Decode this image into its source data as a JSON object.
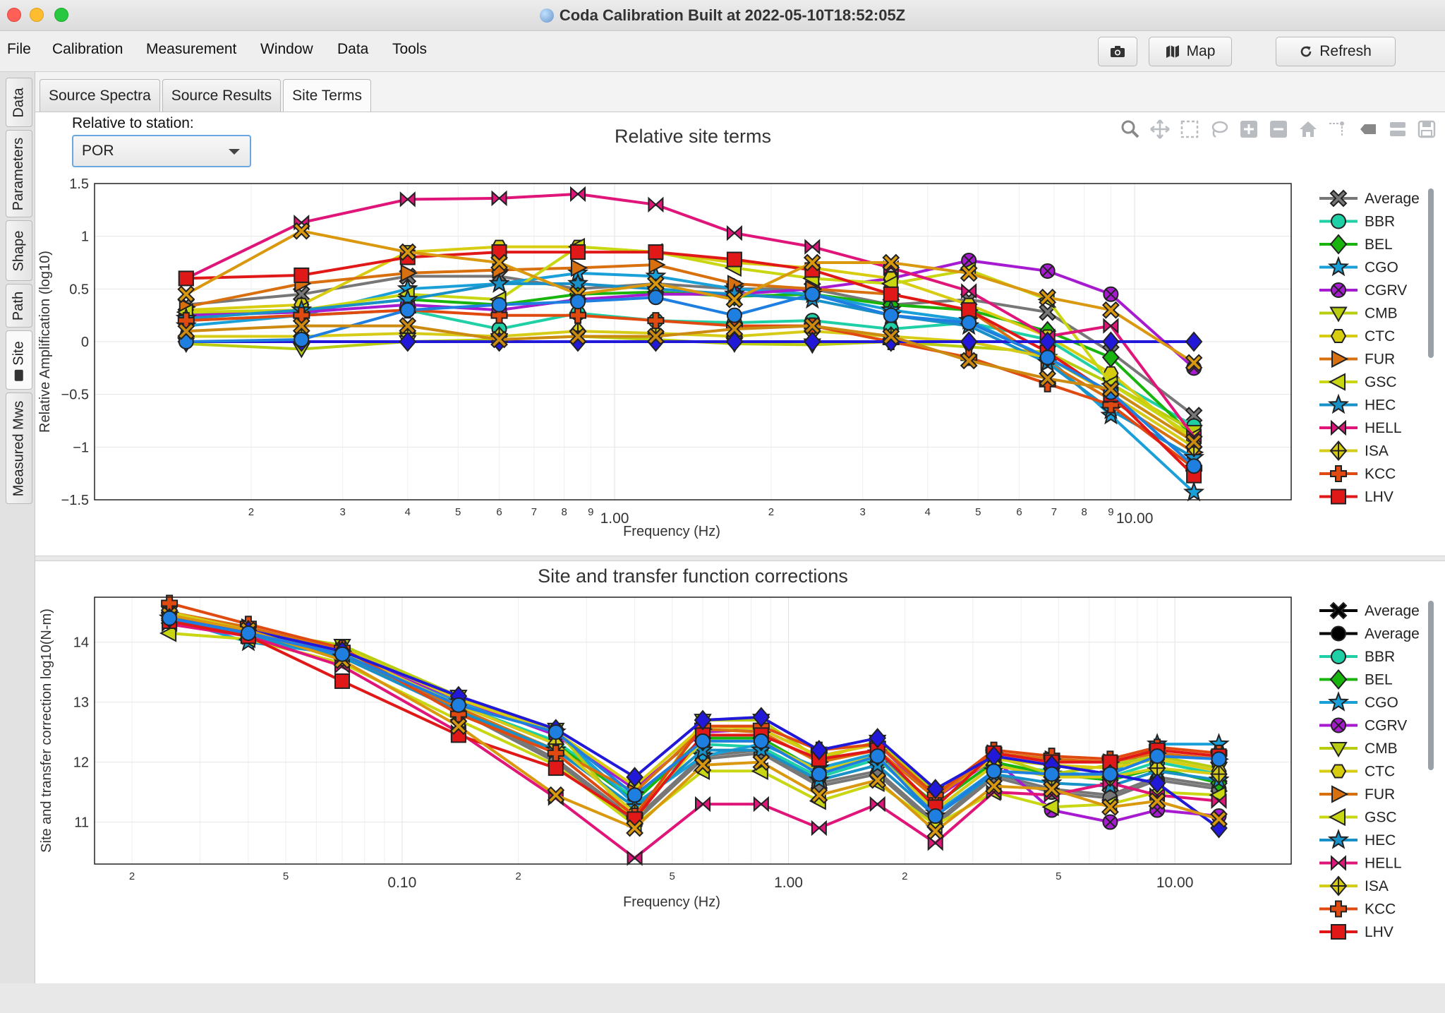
{
  "window": {
    "title": "Coda Calibration Built at 2022-05-10T18:52:05Z"
  },
  "menu": {
    "items": [
      "File",
      "Calibration",
      "Measurement",
      "Window",
      "Data",
      "Tools"
    ]
  },
  "toolbar": {
    "map_label": "Map",
    "refresh_label": "Refresh"
  },
  "side_tabs": [
    "Data",
    "Parameters",
    "Shape",
    "Path",
    "Site",
    "Measured Mws"
  ],
  "top_tabs": [
    "Source Spectra",
    "Source Results",
    "Site Terms"
  ],
  "station": {
    "label": "Relative to station:",
    "value": "POR"
  },
  "modebar_icons": [
    "zoom-icon",
    "pan-icon",
    "box-select-icon",
    "lasso-icon",
    "zoom-in-icon",
    "zoom-out-icon",
    "home-icon",
    "spike-icon",
    "hover-closest-icon",
    "hover-compare-icon",
    "save-icon"
  ],
  "colors": {
    "Average": "#777777",
    "BBR": "#1fcfa6",
    "BEL": "#19b40e",
    "CGO": "#1aa0d8",
    "CGRV": "#a71bd0",
    "CMB": "#b8cc10",
    "CTC": "#d8cc10",
    "FUR": "#d97010",
    "GSC": "#c9d612",
    "HEC": "#1890c8",
    "HELL": "#e0157a",
    "ISA": "#d6cc18",
    "KCC": "#e04a10",
    "LHV": "#e01818"
  },
  "chart_data": [
    {
      "type": "line",
      "title": "Relative site terms",
      "xlabel": "Frequency (Hz)",
      "ylabel": "Relative Amplification (log10)",
      "x_scale": "log",
      "xlim": [
        0.1,
        20
      ],
      "ylim": [
        -1.5,
        1.5
      ],
      "y_ticks": [
        "1.5",
        "1",
        "0.5",
        "0",
        "−0.5",
        "−1",
        "−1.5"
      ],
      "x_tick_labels": [
        "2",
        "3",
        "4",
        "5",
        "6",
        "7",
        "8",
        "9",
        "1.00",
        "2",
        "3",
        "4",
        "5",
        "6",
        "7",
        "8",
        "9",
        "10.00"
      ],
      "x": [
        0.15,
        0.25,
        0.4,
        0.6,
        0.85,
        1.2,
        1.7,
        2.4,
        3.4,
        4.8,
        6.8,
        9.0,
        13.0
      ],
      "legend": "right",
      "series": [
        {
          "name": "Average",
          "marker": "X",
          "values": [
            0.35,
            0.45,
            0.62,
            0.62,
            0.5,
            0.55,
            0.5,
            0.5,
            0.35,
            0.4,
            0.28,
            -0.1,
            -0.7
          ]
        },
        {
          "name": "BBR",
          "marker": "circle",
          "values": [
            0.2,
            0.25,
            0.3,
            0.12,
            0.27,
            0.2,
            0.18,
            0.2,
            0.12,
            0.18,
            0.02,
            -0.35,
            -0.8
          ]
        },
        {
          "name": "BEL",
          "marker": "diamond",
          "values": [
            0.25,
            0.3,
            0.4,
            0.35,
            0.45,
            0.47,
            0.43,
            0.45,
            0.35,
            0.3,
            0.1,
            -0.15,
            -0.9
          ]
        },
        {
          "name": "CGO",
          "marker": "star",
          "values": [
            0.15,
            0.25,
            0.5,
            0.55,
            0.65,
            0.62,
            0.5,
            0.45,
            0.3,
            0.2,
            -0.15,
            -0.7,
            -1.43
          ]
        },
        {
          "name": "CGRV",
          "marker": "circle-x",
          "values": [
            0.25,
            0.28,
            0.35,
            0.3,
            0.4,
            0.45,
            0.45,
            0.5,
            0.6,
            0.77,
            0.67,
            0.45,
            -0.25
          ]
        },
        {
          "name": "CMB",
          "marker": "triangle-down",
          "values": [
            -0.02,
            -0.07,
            0.0,
            0.02,
            0.05,
            0.02,
            -0.02,
            -0.03,
            0.0,
            -0.05,
            -0.1,
            -0.4,
            -0.85
          ]
        },
        {
          "name": "CTC",
          "marker": "hexagon",
          "values": [
            0.3,
            0.35,
            0.85,
            0.9,
            0.9,
            0.85,
            0.75,
            0.7,
            0.6,
            0.35,
            0.05,
            -0.3,
            -0.95
          ]
        },
        {
          "name": "FUR",
          "marker": "triangle-right",
          "values": [
            0.33,
            0.55,
            0.65,
            0.68,
            0.7,
            0.73,
            0.55,
            0.5,
            0.45,
            0.3,
            -0.2,
            -0.55,
            -1.05
          ]
        },
        {
          "name": "GSC",
          "marker": "triangle-left",
          "values": [
            0.28,
            0.3,
            0.45,
            0.4,
            0.9,
            0.85,
            0.7,
            0.6,
            0.55,
            0.68,
            0.4,
            -0.4,
            -0.9
          ]
        },
        {
          "name": "HEC",
          "marker": "star",
          "values": [
            0.22,
            0.3,
            0.4,
            0.55,
            0.55,
            0.5,
            0.45,
            0.4,
            0.25,
            0.15,
            -0.2,
            -0.65,
            -1.1
          ]
        },
        {
          "name": "HELL",
          "marker": "bowtie",
          "values": [
            0.6,
            1.13,
            1.35,
            1.36,
            1.4,
            1.3,
            1.03,
            0.9,
            0.7,
            0.48,
            0.05,
            0.15,
            -0.9
          ]
        },
        {
          "name": "ISA",
          "marker": "diamond-cross",
          "values": [
            0.05,
            0.05,
            0.08,
            0.05,
            0.1,
            0.08,
            0.05,
            0.1,
            0.05,
            0.0,
            -0.15,
            -0.5,
            -1.0
          ]
        },
        {
          "name": "KCC",
          "marker": "cross",
          "values": [
            0.2,
            0.25,
            0.3,
            0.25,
            0.25,
            0.2,
            0.15,
            0.15,
            0.0,
            -0.15,
            -0.4,
            -0.6,
            -1.2
          ]
        },
        {
          "name": "LHV",
          "marker": "square",
          "values": [
            0.6,
            0.63,
            0.8,
            0.85,
            0.85,
            0.85,
            0.78,
            0.68,
            0.45,
            0.3,
            -0.1,
            -0.5,
            -1.27
          ]
        },
        {
          "name": "POR",
          "marker": "diamond",
          "values": [
            0.0,
            0.0,
            0.0,
            0.0,
            0.0,
            0.0,
            0.0,
            0.0,
            0.0,
            0.0,
            0.0,
            0.0,
            0.0
          ]
        },
        {
          "name": "Average",
          "marker": "X",
          "values": [
            0.45,
            1.05,
            0.85,
            0.75,
            0.45,
            0.55,
            0.4,
            0.75,
            0.75,
            0.65,
            0.42,
            0.3,
            -0.2
          ]
        },
        {
          "name": "CGO",
          "marker": "circle",
          "values": [
            0.0,
            0.02,
            0.3,
            0.35,
            0.38,
            0.42,
            0.25,
            0.45,
            0.25,
            0.18,
            -0.15,
            -0.48,
            -1.18
          ]
        },
        {
          "name": "ISA",
          "marker": "X",
          "values": [
            0.1,
            0.15,
            0.15,
            0.02,
            0.05,
            0.05,
            0.12,
            0.15,
            0.05,
            -0.18,
            -0.35,
            -0.45,
            -0.95
          ]
        }
      ],
      "legend_entries": [
        "Average",
        "BBR",
        "BEL",
        "CGO",
        "CGRV",
        "CMB",
        "CTC",
        "FUR",
        "GSC",
        "HEC",
        "HELL",
        "ISA",
        "KCC",
        "LHV"
      ]
    },
    {
      "type": "line",
      "title": "Site and transfer function corrections",
      "xlabel": "Frequency (Hz)",
      "ylabel": "Site and transfer correction log10(N-m)",
      "x_scale": "log",
      "xlim": [
        0.016,
        20
      ],
      "ylim": [
        10.3,
        14.75
      ],
      "y_ticks": [
        "14",
        "13",
        "12",
        "11"
      ],
      "x_tick_labels": [
        "2",
        "5",
        "0.10",
        "2",
        "5",
        "1.00",
        "2",
        "5",
        "10.00"
      ],
      "x": [
        0.025,
        0.04,
        0.07,
        0.14,
        0.25,
        0.4,
        0.6,
        0.85,
        1.2,
        1.7,
        2.4,
        3.4,
        4.8,
        6.8,
        9.0,
        13.0
      ],
      "legend": "right",
      "series": [
        {
          "name": "Average",
          "marker": "X",
          "values": [
            14.4,
            14.15,
            13.8,
            12.9,
            12.05,
            11.05,
            12.1,
            12.2,
            11.65,
            11.85,
            11.0,
            11.8,
            11.55,
            11.45,
            11.75,
            11.6
          ]
        },
        {
          "name": "Average",
          "marker": "circle",
          "values": [
            14.35,
            14.15,
            13.75,
            12.85,
            12.0,
            11.0,
            12.05,
            12.15,
            11.6,
            11.8,
            10.95,
            11.75,
            11.5,
            11.4,
            11.7,
            11.55
          ]
        },
        {
          "name": "BBR",
          "marker": "circle",
          "values": [
            14.4,
            14.1,
            13.85,
            12.95,
            12.35,
            11.4,
            12.3,
            12.25,
            11.75,
            12.05,
            11.2,
            11.95,
            11.85,
            11.75,
            12.0,
            11.8
          ]
        },
        {
          "name": "BEL",
          "marker": "diamond",
          "values": [
            14.45,
            14.15,
            13.8,
            12.95,
            12.3,
            11.35,
            12.4,
            12.4,
            11.85,
            12.1,
            11.3,
            12.0,
            11.8,
            11.7,
            11.9,
            11.65
          ]
        },
        {
          "name": "CGO",
          "marker": "star",
          "values": [
            14.4,
            14.0,
            13.8,
            13.0,
            12.5,
            11.3,
            12.1,
            12.3,
            11.9,
            12.15,
            11.15,
            11.85,
            11.8,
            11.8,
            12.3,
            12.3
          ]
        },
        {
          "name": "CGRV",
          "marker": "circle-x",
          "values": [
            14.4,
            14.15,
            13.8,
            13.05,
            12.45,
            11.55,
            12.5,
            12.55,
            12.1,
            12.3,
            11.4,
            12.05,
            11.2,
            11.0,
            11.2,
            11.1
          ]
        },
        {
          "name": "CMB",
          "marker": "triangle-down",
          "values": [
            14.5,
            14.2,
            13.95,
            13.1,
            12.55,
            11.0,
            12.7,
            12.7,
            12.05,
            12.35,
            11.5,
            12.1,
            11.8,
            11.95,
            12.1,
            11.9
          ]
        },
        {
          "name": "CTC",
          "marker": "hexagon",
          "values": [
            14.45,
            14.2,
            13.9,
            13.05,
            12.5,
            11.6,
            12.6,
            12.55,
            12.1,
            12.3,
            11.45,
            12.05,
            11.95,
            11.9,
            12.05,
            11.85
          ]
        },
        {
          "name": "FUR",
          "marker": "triangle-right",
          "values": [
            14.5,
            14.25,
            13.85,
            12.9,
            12.2,
            11.5,
            12.55,
            12.5,
            12.0,
            12.2,
            11.4,
            12.15,
            12.05,
            12.0,
            12.15,
            12.05
          ]
        },
        {
          "name": "GSC",
          "marker": "triangle-left",
          "values": [
            14.15,
            14.05,
            13.65,
            12.7,
            11.95,
            10.95,
            11.85,
            11.85,
            11.35,
            11.65,
            10.95,
            11.5,
            11.25,
            11.3,
            11.5,
            11.45
          ]
        },
        {
          "name": "HEC",
          "marker": "star",
          "values": [
            14.4,
            14.1,
            13.75,
            12.85,
            12.2,
            11.25,
            12.2,
            12.2,
            11.7,
            11.95,
            11.1,
            11.8,
            11.65,
            11.6,
            11.85,
            11.7
          ]
        },
        {
          "name": "HELL",
          "marker": "bowtie",
          "values": [
            14.3,
            14.1,
            13.6,
            12.5,
            11.4,
            10.4,
            11.3,
            11.3,
            10.9,
            11.3,
            10.65,
            11.5,
            11.45,
            11.65,
            11.45,
            11.35
          ]
        },
        {
          "name": "ISA",
          "marker": "diamond-cross",
          "values": [
            14.5,
            14.2,
            13.85,
            12.95,
            12.3,
            11.15,
            12.35,
            12.35,
            11.85,
            12.1,
            11.2,
            11.95,
            11.75,
            11.75,
            11.9,
            11.8
          ]
        },
        {
          "name": "KCC",
          "marker": "cross",
          "values": [
            14.65,
            14.3,
            13.9,
            12.8,
            12.15,
            11.1,
            12.6,
            12.6,
            12.2,
            12.3,
            11.45,
            12.2,
            12.1,
            12.05,
            12.25,
            12.15
          ]
        },
        {
          "name": "LHV",
          "marker": "square",
          "values": [
            14.35,
            14.1,
            13.35,
            12.45,
            11.9,
            11.05,
            12.45,
            12.45,
            12.05,
            12.2,
            11.25,
            12.15,
            12.0,
            12.0,
            12.2,
            12.1
          ]
        },
        {
          "name": "POR",
          "marker": "diamond",
          "values": [
            14.4,
            14.2,
            13.85,
            13.1,
            12.55,
            11.75,
            12.7,
            12.75,
            12.2,
            12.4,
            11.55,
            12.1,
            11.95,
            11.8,
            11.65,
            10.9
          ]
        },
        {
          "name": "Average",
          "marker": "X",
          "values": [
            14.45,
            14.2,
            13.7,
            12.6,
            11.45,
            10.9,
            11.95,
            12.0,
            11.45,
            11.7,
            10.85,
            11.6,
            11.55,
            11.25,
            11.35,
            11.05
          ]
        },
        {
          "name": "CTC",
          "marker": "circle",
          "values": [
            14.4,
            14.15,
            13.8,
            12.95,
            12.5,
            11.45,
            12.35,
            12.35,
            11.8,
            12.1,
            11.1,
            11.85,
            11.8,
            11.8,
            12.1,
            12.05
          ]
        }
      ],
      "legend_entries": [
        "Average",
        "Average",
        "BBR",
        "BEL",
        "CGO",
        "CGRV",
        "CMB",
        "CTC",
        "FUR",
        "GSC",
        "HEC",
        "HELL",
        "ISA",
        "KCC",
        "LHV"
      ]
    }
  ]
}
